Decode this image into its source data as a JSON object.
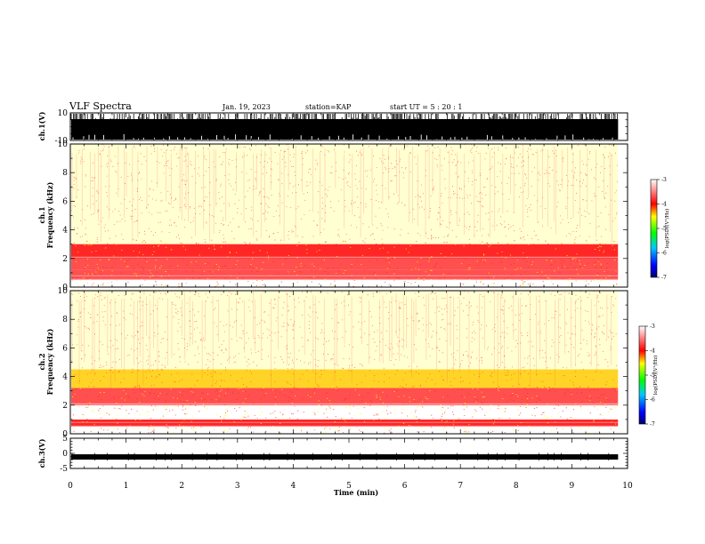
{
  "header": {
    "title": "VLF Spectra",
    "date": "Jan. 19, 2023",
    "station": "station=KAP",
    "start": "start UT =  5 : 20 : 1"
  },
  "chart_data": [
    {
      "type": "line",
      "name": "ch1-voltage",
      "ylabel": "ch.1(V)",
      "ylim": [
        -10,
        10
      ],
      "yticks": [
        -10,
        10
      ],
      "fill_level": 0.75
    },
    {
      "type": "heatmap",
      "name": "ch1-spectrogram",
      "ylabel_line1": "ch.1",
      "ylabel_line2": "Frequency (kHz)",
      "ylim": [
        0,
        10
      ],
      "yticks": [
        0,
        2,
        4,
        6,
        8,
        10
      ],
      "colorbar": {
        "label": "log(PSD)(V²/Hz)",
        "ticks": [
          -3,
          -4,
          -5,
          -6,
          -7
        ],
        "range": [
          -7,
          -3
        ]
      },
      "bands": [
        {
          "from_khz": 0.5,
          "to_khz": 1.2,
          "level": -3.8
        },
        {
          "from_khz": 1.2,
          "to_khz": 2.0,
          "level": -3.6
        },
        {
          "from_khz": 2.0,
          "to_khz": 3.0,
          "level": -4.0
        },
        {
          "from_khz": 3.0,
          "to_khz": 10.0,
          "level": -4.8
        }
      ]
    },
    {
      "type": "heatmap",
      "name": "ch2-spectrogram",
      "ylabel_line1": "ch.2",
      "ylabel_line2": "Frequency (kHz)",
      "ylim": [
        0,
        10
      ],
      "yticks": [
        0,
        2,
        4,
        6,
        8,
        10
      ],
      "colorbar": {
        "label": "log(PSD)(V²/Hz)",
        "ticks": [
          -3,
          -4,
          -5,
          -6,
          -7
        ],
        "range": [
          -7,
          -3
        ]
      },
      "bands": [
        {
          "from_khz": 0.5,
          "to_khz": 1.0,
          "level": -3.9
        },
        {
          "from_khz": 1.0,
          "to_khz": 2.0,
          "level": -3.3
        },
        {
          "from_khz": 2.0,
          "to_khz": 3.2,
          "level": -3.6
        },
        {
          "from_khz": 3.2,
          "to_khz": 4.5,
          "level": -4.3
        },
        {
          "from_khz": 4.5,
          "to_khz": 10.0,
          "level": -4.9
        }
      ]
    },
    {
      "type": "line",
      "name": "ch3-voltage",
      "ylabel": "ch.3(V)",
      "ylim": [
        -5,
        5
      ],
      "yticks": [
        -5,
        0,
        5
      ],
      "trace_level": -1.2
    }
  ],
  "xaxis": {
    "label": "Time (min)",
    "xlim": [
      0,
      10
    ],
    "ticks": [
      0,
      1,
      2,
      3,
      4,
      5,
      6,
      7,
      8,
      9,
      10
    ],
    "data_end": 9.83
  }
}
